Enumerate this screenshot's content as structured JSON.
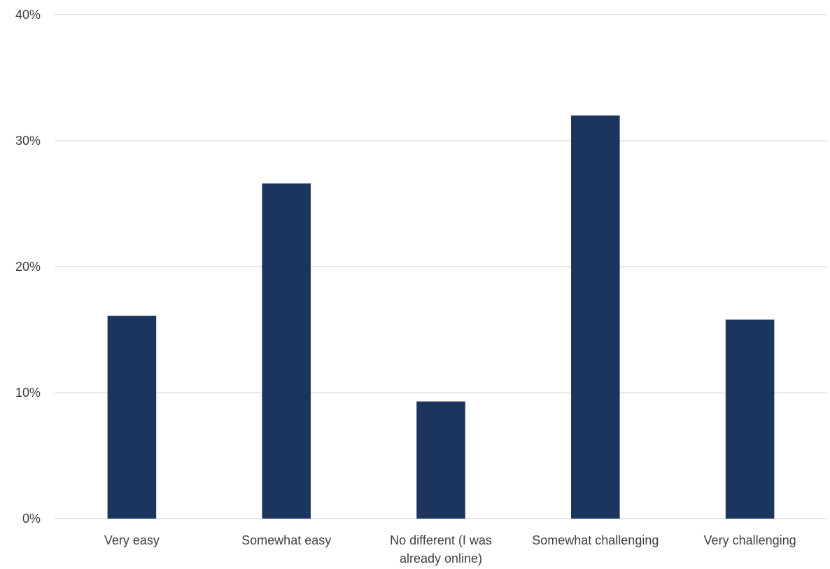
{
  "chart_data": {
    "type": "bar",
    "categories": [
      [
        "Very easy"
      ],
      [
        "Somewhat easy"
      ],
      [
        "No different (I was",
        "already online)"
      ],
      [
        "Somewhat challenging"
      ],
      [
        "Very challenging"
      ]
    ],
    "values": [
      16.1,
      26.6,
      9.3,
      32.0,
      15.8
    ],
    "yticks": [
      "0%",
      "10%",
      "20%",
      "30%",
      "40%"
    ],
    "ylim": [
      0,
      40
    ],
    "grid": true,
    "bar_color": "#1c355e",
    "title": "",
    "xlabel": "",
    "ylabel": ""
  }
}
